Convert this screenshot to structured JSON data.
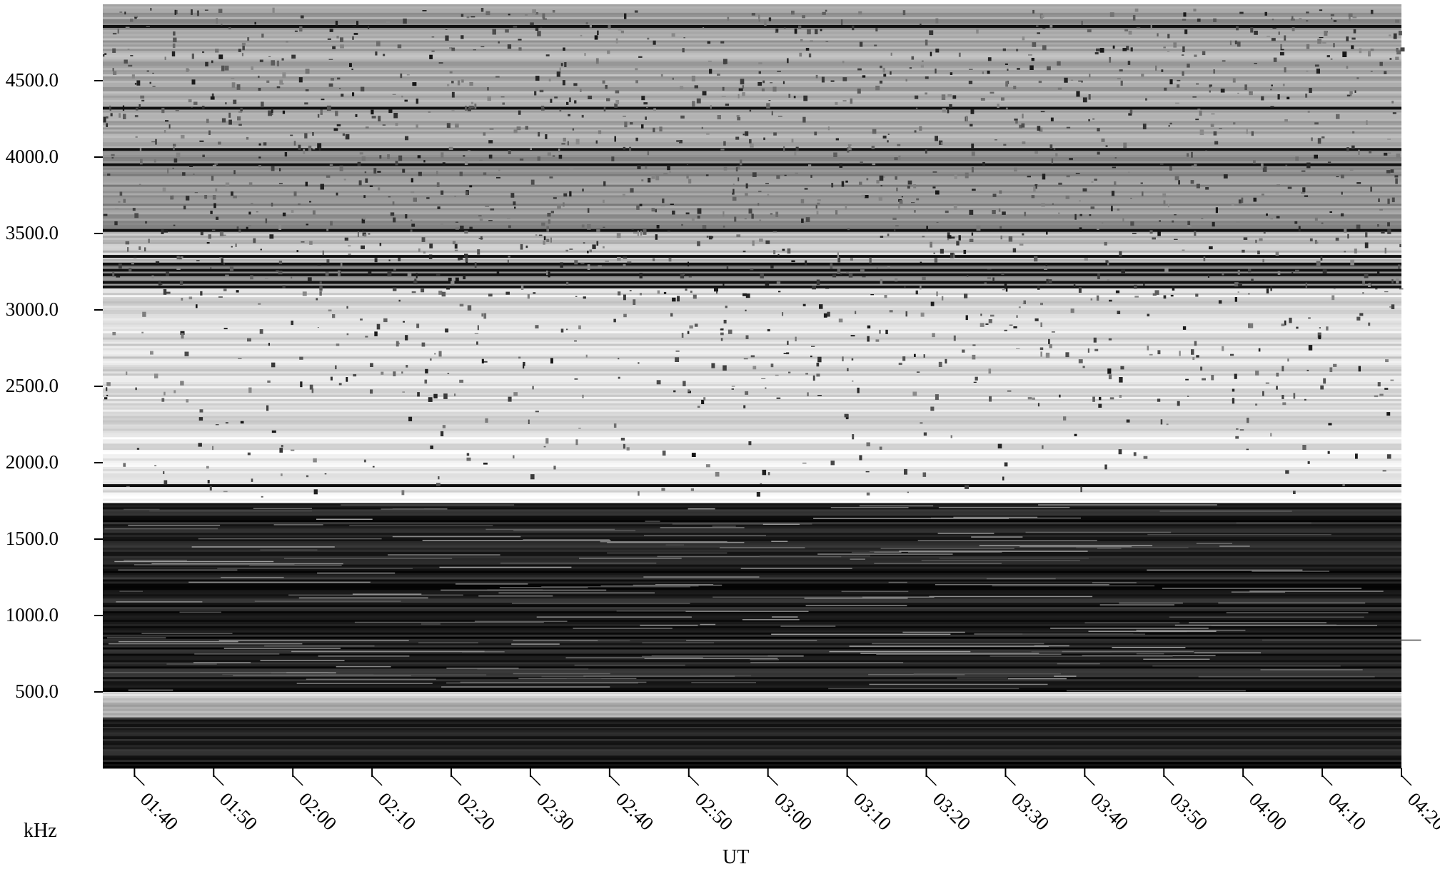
{
  "chart_data": {
    "type": "heatmap",
    "colormap": "grayscale",
    "xlabel": "UT",
    "ylabel": "kHz",
    "x_ticks": [
      "01:40",
      "01:50",
      "02:00",
      "02:10",
      "02:20",
      "02:30",
      "02:40",
      "02:50",
      "03:00",
      "03:10",
      "03:20",
      "03:30",
      "03:40",
      "03:50",
      "04:00",
      "04:10",
      "04:20"
    ],
    "y_ticks": [
      "500.0",
      "1000.0",
      "1500.0",
      "2000.0",
      "2500.0",
      "3000.0",
      "3500.0",
      "4000.0",
      "4500.0"
    ],
    "xlim": [
      "01:36",
      "04:20"
    ],
    "ylim": [
      0,
      5000
    ],
    "grid": false
  }
}
